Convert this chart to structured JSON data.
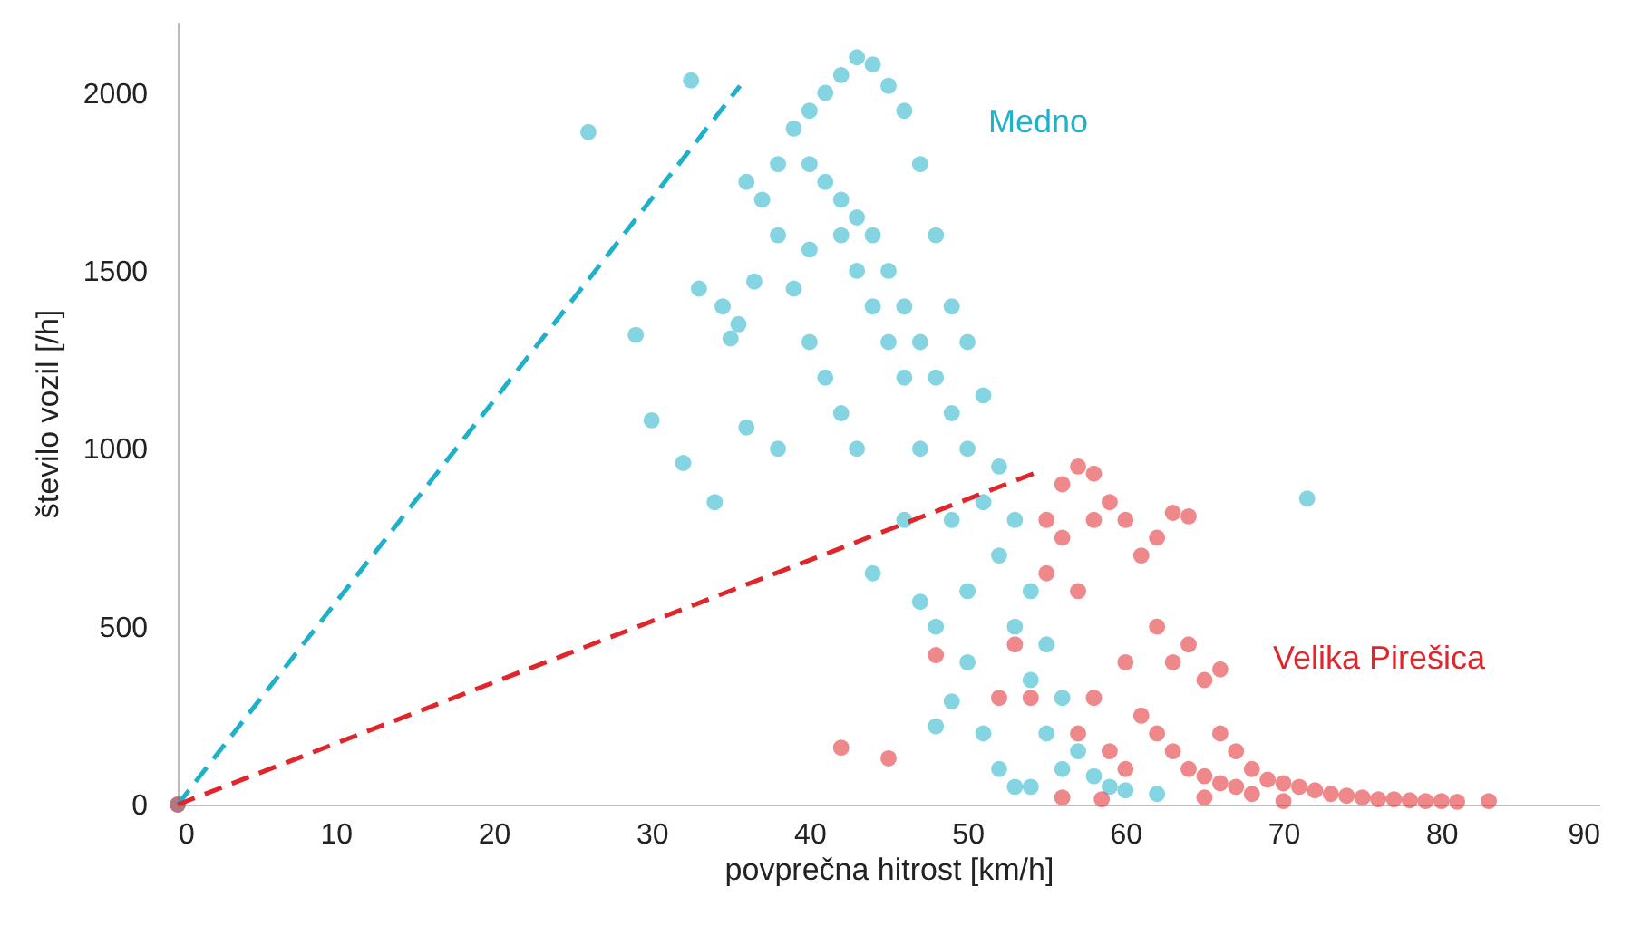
{
  "chart_data": {
    "type": "scatter",
    "xlabel": "povprečna hitrost [km/h]",
    "ylabel": "število vozil [/h]",
    "xlim": [
      0,
      90
    ],
    "ylim": [
      0,
      2200
    ],
    "xticks": [
      0,
      10,
      20,
      30,
      40,
      50,
      60,
      70,
      80,
      90
    ],
    "yticks": [
      0,
      500,
      1000,
      1500,
      2000
    ],
    "grid": false,
    "series": [
      {
        "name": "Medno",
        "type": "scatter",
        "marker": "circle",
        "color": "#1fb1c9",
        "x": [
          0,
          26,
          32.5,
          29,
          30,
          32,
          34,
          33,
          35,
          34.5,
          35.5,
          36,
          36.5,
          38,
          40,
          71.5,
          44,
          47,
          48,
          49,
          46,
          38,
          39,
          40,
          41,
          42,
          43,
          44,
          45,
          46,
          47,
          41,
          42,
          43,
          44,
          45,
          46,
          47,
          48,
          48,
          49,
          49,
          50,
          50,
          51,
          51,
          52,
          52,
          53,
          53,
          54,
          54,
          55,
          55,
          56,
          56,
          57,
          58,
          59,
          60,
          62,
          52,
          50,
          51,
          49,
          47,
          46,
          45,
          44,
          43,
          42,
          40,
          37,
          36,
          38,
          39,
          40,
          41,
          42,
          43,
          48,
          50,
          54,
          53
        ],
        "values": [
          0,
          1890,
          2035,
          1320,
          1080,
          960,
          850,
          1450,
          1310,
          1400,
          1350,
          1060,
          1470,
          1000,
          1560,
          860,
          650,
          570,
          220,
          290,
          800,
          1800,
          1900,
          1950,
          2000,
          2050,
          2100,
          2080,
          2020,
          1950,
          1800,
          1750,
          1700,
          1650,
          1600,
          1500,
          1400,
          1300,
          1200,
          1600,
          1400,
          1100,
          1300,
          1000,
          1150,
          850,
          950,
          700,
          800,
          500,
          600,
          350,
          450,
          200,
          300,
          100,
          150,
          80,
          50,
          40,
          30,
          100,
          400,
          200,
          800,
          1000,
          1200,
          1300,
          1400,
          1500,
          1600,
          1800,
          1700,
          1750,
          1600,
          1450,
          1300,
          1200,
          1100,
          1000,
          500,
          600,
          50,
          50
        ]
      },
      {
        "name": "Velika Pirešica",
        "type": "scatter",
        "marker": "circle",
        "color": "#e0262b",
        "x": [
          0,
          42,
          45,
          48,
          52,
          53,
          54,
          55,
          55,
          56,
          56,
          57,
          58,
          57,
          58,
          59,
          60,
          61,
          62,
          63,
          64,
          62,
          63,
          64,
          65,
          66,
          60,
          58,
          57,
          59,
          60,
          61,
          62,
          63,
          64,
          65,
          66,
          67,
          68,
          69,
          70,
          71,
          72,
          73,
          74,
          75,
          76,
          77,
          78,
          79,
          80,
          81,
          83,
          58.5,
          56,
          65,
          70,
          66,
          67,
          68
        ],
        "values": [
          0,
          160,
          130,
          420,
          300,
          450,
          300,
          650,
          800,
          750,
          900,
          950,
          930,
          600,
          800,
          850,
          800,
          700,
          750,
          820,
          810,
          500,
          400,
          450,
          350,
          380,
          400,
          300,
          200,
          150,
          100,
          250,
          200,
          150,
          100,
          80,
          60,
          150,
          100,
          70,
          60,
          50,
          40,
          30,
          25,
          20,
          15,
          15,
          12,
          10,
          10,
          8,
          10,
          15,
          20,
          20,
          10,
          200,
          50,
          30
        ]
      },
      {
        "type": "line",
        "color": "#1fb1c9",
        "line_style": "dashed",
        "x": [
          0,
          35.6
        ],
        "values": [
          0,
          2020
        ]
      },
      {
        "type": "line",
        "color": "#e0262b",
        "line_style": "dashed",
        "x": [
          0,
          54.4
        ],
        "values": [
          0,
          934
        ]
      }
    ]
  }
}
